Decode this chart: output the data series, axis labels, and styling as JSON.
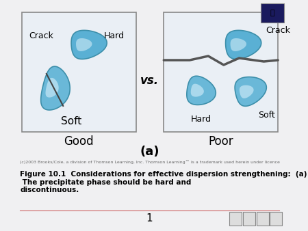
{
  "bg_color": "#f0f0f0",
  "box_color": "#e8eef5",
  "box_edge_color": "#888888",
  "blob_fill_top": "#5aafd0",
  "blob_fill_bottom": "#c8e6f5",
  "blob_edge": "#4488aa",
  "crack_line_color": "#555555",
  "vs_text": "vs.",
  "good_text": "Good",
  "poor_text": "Poor",
  "a_label": "(a)",
  "caption": "(c)2003 Brooks/Cole, a division of Thomson Learning, Inc. Thomson Learning™ is a trademark used herein under licence",
  "figure_caption": "Figure 10.1  Considerations for effective dispersion strengthening:  (a)  The precipitate phase should be hard and\ndiscontinuous.",
  "page_num": "1",
  "left_labels": {
    "crack": "Crack",
    "hard": "Hard",
    "soft": "Soft"
  },
  "right_labels": {
    "crack": "Crack",
    "hard": "Hard",
    "soft": "Soft"
  }
}
